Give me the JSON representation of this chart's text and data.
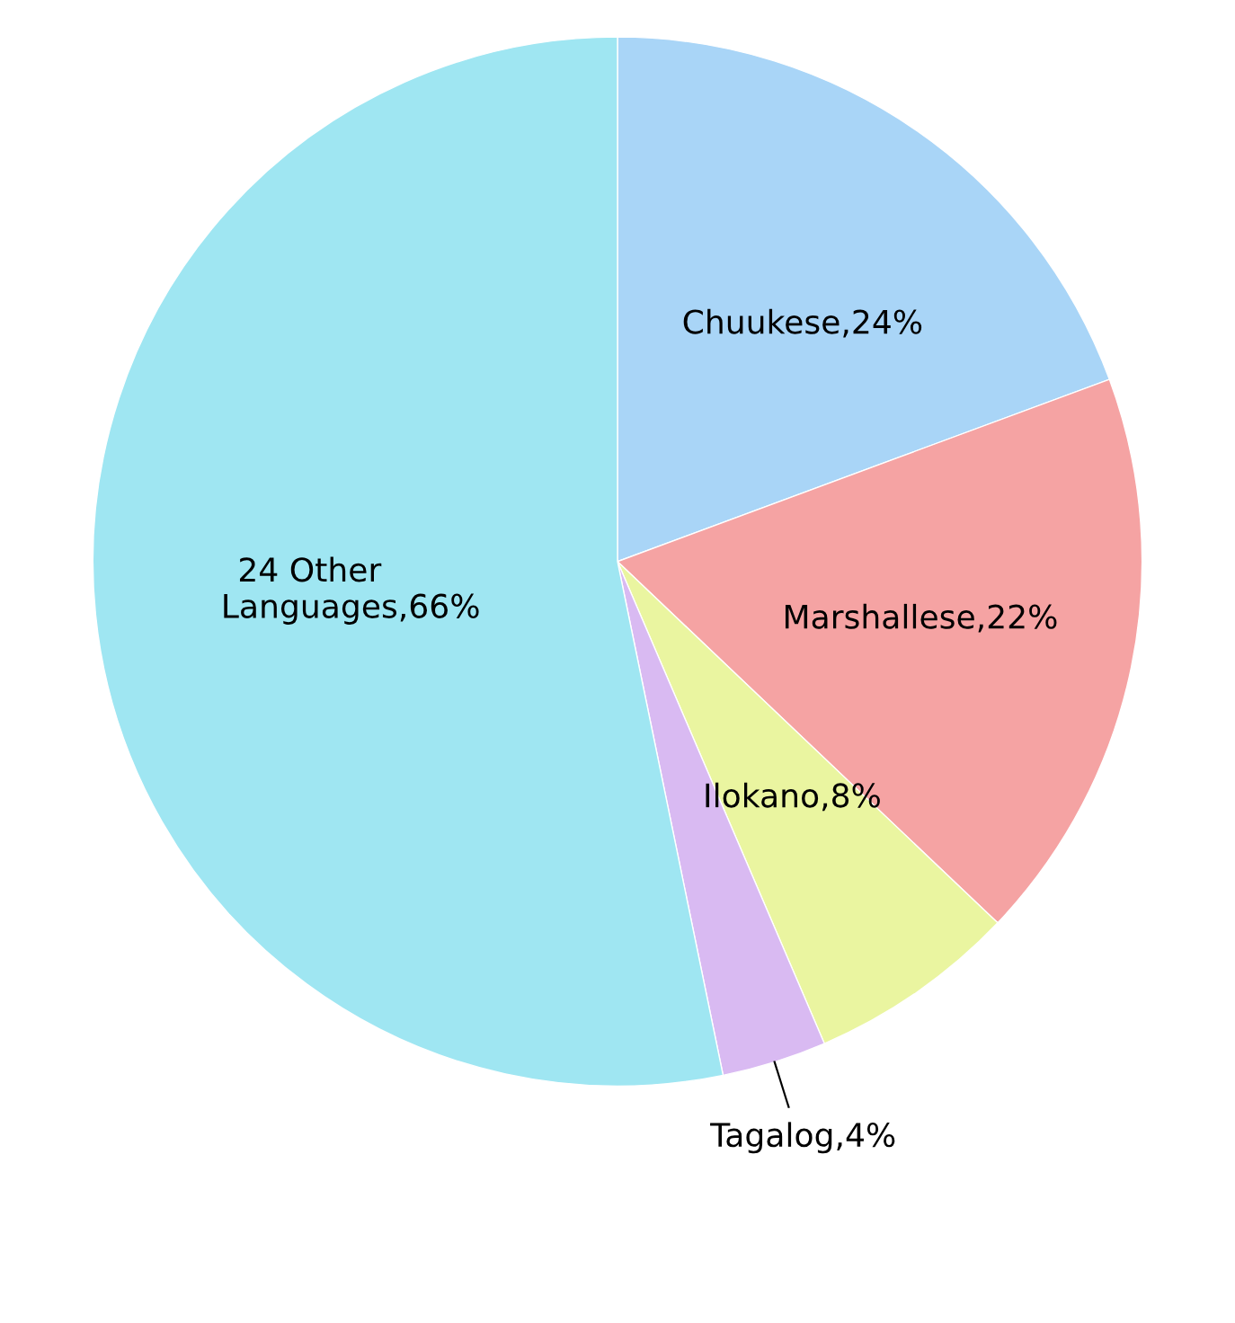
{
  "chart_data": {
    "type": "pie",
    "categories": [
      "Chuukese",
      "Marshallese",
      "Ilokano",
      "Tagalog",
      "24 Other\nLanguages"
    ],
    "values": [
      24,
      22,
      8,
      4,
      66
    ],
    "colors": [
      "#a9d5f7",
      "#f5a3a3",
      "#eaf5a0",
      "#d9baf2",
      "#9fe6f2"
    ],
    "value_labels": [
      ",24%",
      ",22%",
      ",8%",
      ",4%",
      ",66%"
    ]
  }
}
